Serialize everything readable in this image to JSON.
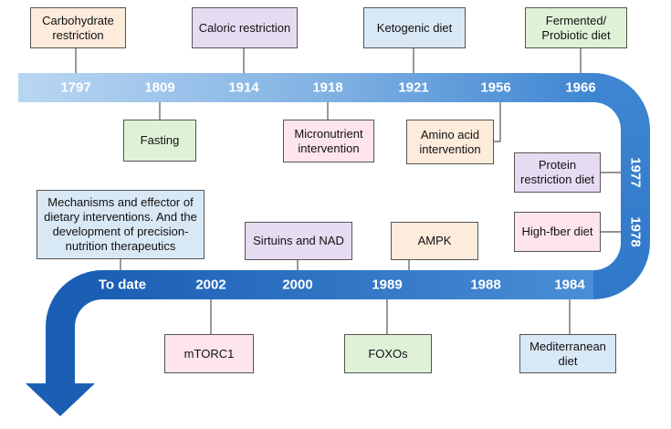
{
  "colors": {
    "band_light": "#a9cdee",
    "band_dark": "#1a63b8",
    "box_peach": "#fdebdc",
    "box_lavender": "#e6dcf2",
    "box_blue": "#d9e8f5",
    "box_green": "#dff2d8",
    "box_pink": "#fde4ef",
    "connector": "#555555",
    "year_text": "#ffffff"
  },
  "milestones": [
    {
      "id": "carbohydrate",
      "year": "1797",
      "label": "Carbohydrate\nrestriction",
      "color": "peach"
    },
    {
      "id": "fasting",
      "year": "1809",
      "label": "Fasting",
      "color": "green"
    },
    {
      "id": "caloric",
      "year": "1914",
      "label": "Caloric restriction",
      "color": "lavender"
    },
    {
      "id": "micronutrient",
      "year": "1918",
      "label": "Micronutrient\nintervention",
      "color": "pink"
    },
    {
      "id": "ketogenic",
      "year": "1921",
      "label": "Ketogenic diet",
      "color": "blue"
    },
    {
      "id": "amino-acid",
      "year": "1956",
      "label": "Amino acid\nintervention",
      "color": "peach"
    },
    {
      "id": "fermented",
      "year": "1966",
      "label": "Fermented/\nProbiotic diet",
      "color": "green"
    },
    {
      "id": "protein",
      "year": "1977",
      "label": "Protein\nrestriction diet",
      "color": "lavender"
    },
    {
      "id": "high-fiber",
      "year": "1978",
      "label": "High-fber diet",
      "color": "pink"
    },
    {
      "id": "mediterranean",
      "year": "1984",
      "label": "Mediterranean\ndiet",
      "color": "blue"
    },
    {
      "id": "ampk",
      "year": "1988",
      "label": "AMPK",
      "color": "peach"
    },
    {
      "id": "foxos",
      "year": "1989",
      "label": "FOXOs",
      "color": "green"
    },
    {
      "id": "sirtuins",
      "year": "2000",
      "label": "Sirtuins and NAD",
      "color": "lavender"
    },
    {
      "id": "mtorc1",
      "year": "2002",
      "label": "mTORC1",
      "color": "pink"
    },
    {
      "id": "mechanisms",
      "year": "To date",
      "label": "Mechanisms and effector of\ndietary interventions. And the\ndevelopment of precision-\nnutrition therapeutics",
      "color": "blue"
    }
  ]
}
